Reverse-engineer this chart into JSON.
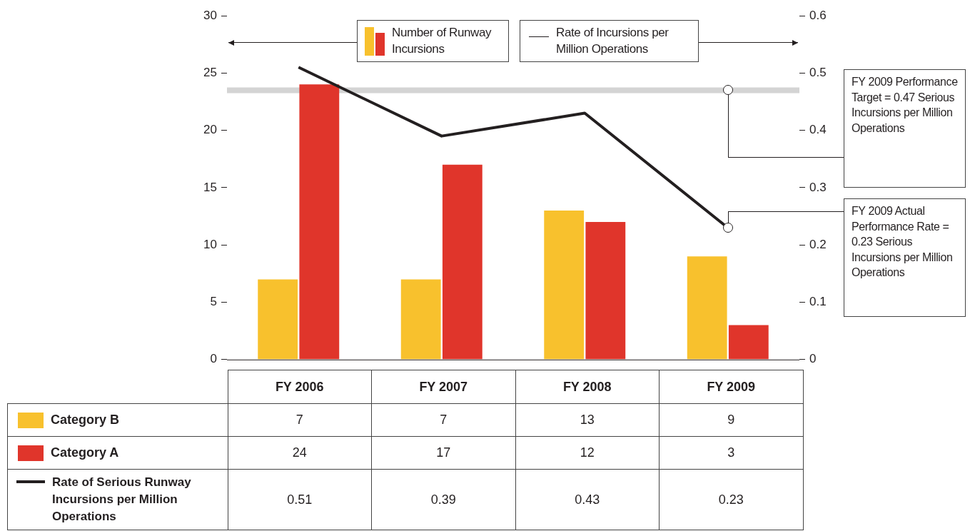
{
  "chart_data": {
    "type": "bar",
    "ylabel": "Number of Runway Incursions",
    "y2label": "Rate of Incursions per Million Operations",
    "categories": [
      "FY 2006",
      "FY 2007",
      "FY 2008",
      "FY 2009"
    ],
    "series": [
      {
        "name": "Category B",
        "color": "#f8c12d",
        "values": [
          7,
          7,
          13,
          9
        ]
      },
      {
        "name": "Category A",
        "color": "#e0352b",
        "values": [
          24,
          17,
          12,
          3
        ]
      },
      {
        "name": "Rate of Serious Runway Incursions per Million Operations",
        "type": "line",
        "axis": "y2",
        "color": "#231f20",
        "values": [
          0.51,
          0.39,
          0.43,
          0.23
        ]
      }
    ],
    "ylim": [
      0,
      30
    ],
    "yticks": [
      0,
      5,
      10,
      15,
      20,
      25,
      30
    ],
    "y2lim": [
      0,
      0.6
    ],
    "y2ticks": [
      0,
      0.1,
      0.2,
      0.3,
      0.4,
      0.5,
      0.6
    ],
    "ref_lines": [
      {
        "axis": "y2",
        "value": 0.47,
        "color": "#d4d4d4"
      }
    ],
    "annotations": [
      "FY 2009 Performance Target = 0.47 Serious Incursions per Million Operations",
      "FY 2009 Actual Performance Rate = 0.23 Serious Incursions per Million Operations"
    ],
    "data_labels": true,
    "legend": "bottom",
    "grid": false,
    "marker": "none",
    "line_style": "solid"
  }
}
